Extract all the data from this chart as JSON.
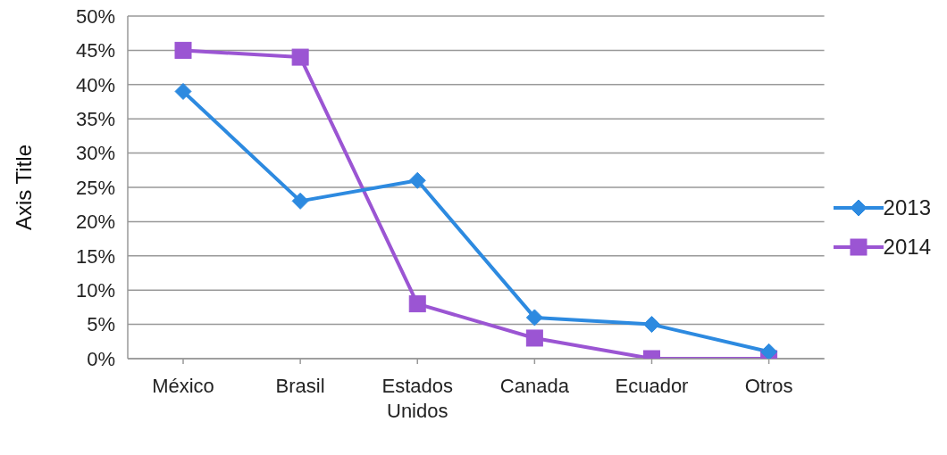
{
  "chart_data": {
    "type": "line",
    "ylabel": "Axis Title",
    "categories": [
      "México",
      "Brasil",
      "Estados Unidos",
      "Canada",
      "Ecuador",
      "Otros"
    ],
    "series": [
      {
        "name": "2013",
        "color": "#2d8ae0",
        "marker": "diamond",
        "values": [
          39,
          23,
          26,
          6,
          5,
          1
        ]
      },
      {
        "name": "2014",
        "color": "#9b55d3",
        "marker": "square",
        "values": [
          45,
          44,
          8,
          3,
          0,
          0
        ]
      }
    ],
    "ylim": [
      0,
      50
    ],
    "yticks": [
      {
        "value": 0,
        "label": "0%"
      },
      {
        "value": 5,
        "label": "5%"
      },
      {
        "value": 10,
        "label": "10%"
      },
      {
        "value": 15,
        "label": "15%"
      },
      {
        "value": 20,
        "label": "20%"
      },
      {
        "value": 25,
        "label": "25%"
      },
      {
        "value": 30,
        "label": "30%"
      },
      {
        "value": 35,
        "label": "35%"
      },
      {
        "value": 40,
        "label": "40%"
      },
      {
        "value": 45,
        "label": "45%"
      },
      {
        "value": 50,
        "label": "50%"
      }
    ],
    "grid": "y",
    "legend": "right"
  }
}
